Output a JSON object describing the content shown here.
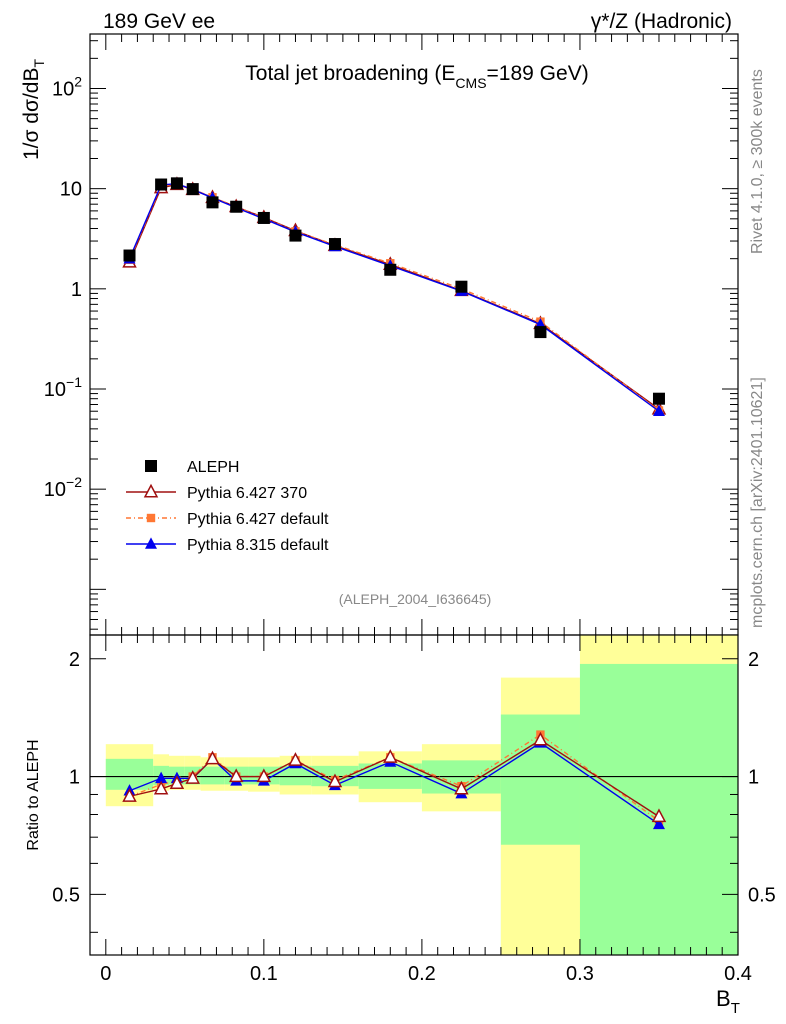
{
  "header": {
    "left_label": "189 GeV ee",
    "right_label_prefix": "γ*/Z",
    "right_label_suffix": " (Hadronic)"
  },
  "side_text": {
    "rivet": "Rivet 4.1.0, ≥ 300k events",
    "mcplots": "mcplots.cern.ch [arXiv:2401.10621]"
  },
  "analysis_id": "(ALEPH_2004_I636645)",
  "chart_data": [
    {
      "type": "line",
      "name": "main",
      "title_main": "Total jet broadening (E",
      "title_sub": "CMS",
      "title_tail": "=189 GeV)",
      "xlabel_main": "B",
      "xlabel_sub": "T",
      "ylabel_main": "1/σ  dσ/dB",
      "ylabel_sub": "T",
      "xlim": [
        -0.01,
        0.4
      ],
      "ylim": [
        0.00035,
        350
      ],
      "yscale": "log",
      "x_ticks": [
        0,
        0.1,
        0.2,
        0.3,
        0.4
      ],
      "x_tick_labels": [
        "0",
        "0.1",
        "0.2",
        "0.3",
        "0.4"
      ],
      "y_ticks": [
        {
          "value": 0.01,
          "mant": "10",
          "exp": "−2"
        },
        {
          "value": 0.1,
          "mant": "10",
          "exp": "−1"
        },
        {
          "value": 1,
          "mant": "1",
          "exp": ""
        },
        {
          "value": 10,
          "mant": "10",
          "exp": ""
        },
        {
          "value": 100,
          "mant": "10",
          "exp": "2"
        }
      ],
      "legend_position": "bottom-left",
      "x": [
        0.015,
        0.035,
        0.045,
        0.055,
        0.0675,
        0.0825,
        0.1,
        0.12,
        0.145,
        0.18,
        0.225,
        0.275,
        0.35
      ],
      "series": [
        {
          "name": "ALEPH",
          "color": "#000000",
          "marker": "square",
          "values": [
            2.15,
            11.0,
            11.3,
            9.9,
            7.3,
            6.6,
            5.1,
            3.4,
            2.8,
            1.55,
            1.05,
            0.37,
            0.08
          ]
        },
        {
          "name": "Pythia 6.427 370",
          "color": "#a01010",
          "marker": "open-triangle",
          "values": [
            1.85,
            10.2,
            11.0,
            9.8,
            8.15,
            6.6,
            5.15,
            3.8,
            2.7,
            1.75,
            0.96,
            0.45,
            0.063
          ]
        },
        {
          "name": "Pythia 6.427 default",
          "color": "#ff7733",
          "marker": "square-small",
          "dash": "5,3,1,3",
          "values": [
            1.95,
            10.6,
            11.2,
            9.9,
            8.2,
            6.6,
            5.1,
            3.75,
            2.75,
            1.8,
            1.0,
            0.47,
            0.061
          ]
        },
        {
          "name": "Pythia 8.315 default",
          "color": "#0000ee",
          "marker": "triangle",
          "values": [
            2.0,
            10.9,
            11.2,
            9.8,
            8.1,
            6.45,
            5.0,
            3.7,
            2.65,
            1.7,
            0.95,
            0.44,
            0.06
          ]
        }
      ]
    },
    {
      "type": "line",
      "name": "ratio",
      "ylabel": "Ratio to ALEPH",
      "yscale": "log",
      "ylim": [
        0.35,
        2.3
      ],
      "y_ticks": [
        0.5,
        1,
        2
      ],
      "y_tick_labels": [
        "0.5",
        "1",
        "2"
      ],
      "reference_line": 1,
      "bins": [
        {
          "lo": 0.0,
          "hi": 0.03,
          "band_inner": [
            0.925,
            1.11
          ],
          "band_outer": [
            0.84,
            1.21
          ]
        },
        {
          "lo": 0.03,
          "hi": 0.04,
          "band_inner": [
            0.95,
            1.065
          ],
          "band_outer": [
            0.92,
            1.14
          ]
        },
        {
          "lo": 0.04,
          "hi": 0.05,
          "band_inner": [
            0.955,
            1.06
          ],
          "band_outer": [
            0.925,
            1.13
          ]
        },
        {
          "lo": 0.05,
          "hi": 0.06,
          "band_inner": [
            0.955,
            1.06
          ],
          "band_outer": [
            0.925,
            1.13
          ]
        },
        {
          "lo": 0.06,
          "hi": 0.075,
          "band_inner": [
            0.955,
            1.06
          ],
          "band_outer": [
            0.92,
            1.12
          ]
        },
        {
          "lo": 0.075,
          "hi": 0.09,
          "band_inner": [
            0.955,
            1.06
          ],
          "band_outer": [
            0.92,
            1.12
          ]
        },
        {
          "lo": 0.09,
          "hi": 0.11,
          "band_inner": [
            0.955,
            1.06
          ],
          "band_outer": [
            0.915,
            1.12
          ]
        },
        {
          "lo": 0.11,
          "hi": 0.13,
          "band_inner": [
            0.95,
            1.065
          ],
          "band_outer": [
            0.9,
            1.13
          ]
        },
        {
          "lo": 0.13,
          "hi": 0.16,
          "band_inner": [
            0.945,
            1.065
          ],
          "band_outer": [
            0.9,
            1.13
          ]
        },
        {
          "lo": 0.16,
          "hi": 0.2,
          "band_inner": [
            0.93,
            1.08
          ],
          "band_outer": [
            0.86,
            1.16
          ]
        },
        {
          "lo": 0.2,
          "hi": 0.25,
          "band_inner": [
            0.905,
            1.1
          ],
          "band_outer": [
            0.815,
            1.21
          ]
        },
        {
          "lo": 0.25,
          "hi": 0.3,
          "band_inner": [
            0.35,
            1.44
          ],
          "band_outer": [
            0.35,
            1.79
          ]
        },
        {
          "lo": 0.3,
          "hi": 0.4,
          "band_inner": [
            0.35,
            1.94
          ],
          "band_outer": [
            0.35,
            2.3
          ]
        }
      ],
      "outer_gap": {
        "lo": 0.25,
        "hi": 0.3,
        "from": 0.35,
        "to": 0.67
      },
      "series": [
        {
          "name": "Pythia 6.427 370",
          "values": [
            0.89,
            0.93,
            0.96,
            0.99,
            1.11,
            1.0,
            1.0,
            1.1,
            0.97,
            1.12,
            0.93,
            1.24,
            0.79
          ]
        },
        {
          "name": "Pythia 6.427 default",
          "values": [
            0.89,
            0.955,
            0.975,
            1.0,
            1.12,
            1.0,
            1.0,
            1.1,
            0.98,
            1.12,
            0.945,
            1.28,
            0.77
          ]
        },
        {
          "name": "Pythia 8.315 default",
          "values": [
            0.92,
            0.99,
            0.99,
            0.99,
            1.11,
            0.975,
            0.975,
            1.08,
            0.95,
            1.09,
            0.905,
            1.22,
            0.755
          ]
        }
      ]
    }
  ],
  "colors": {
    "band_inner": "#99ff99",
    "band_outer": "#ffff99",
    "grey_text": "#888888"
  }
}
